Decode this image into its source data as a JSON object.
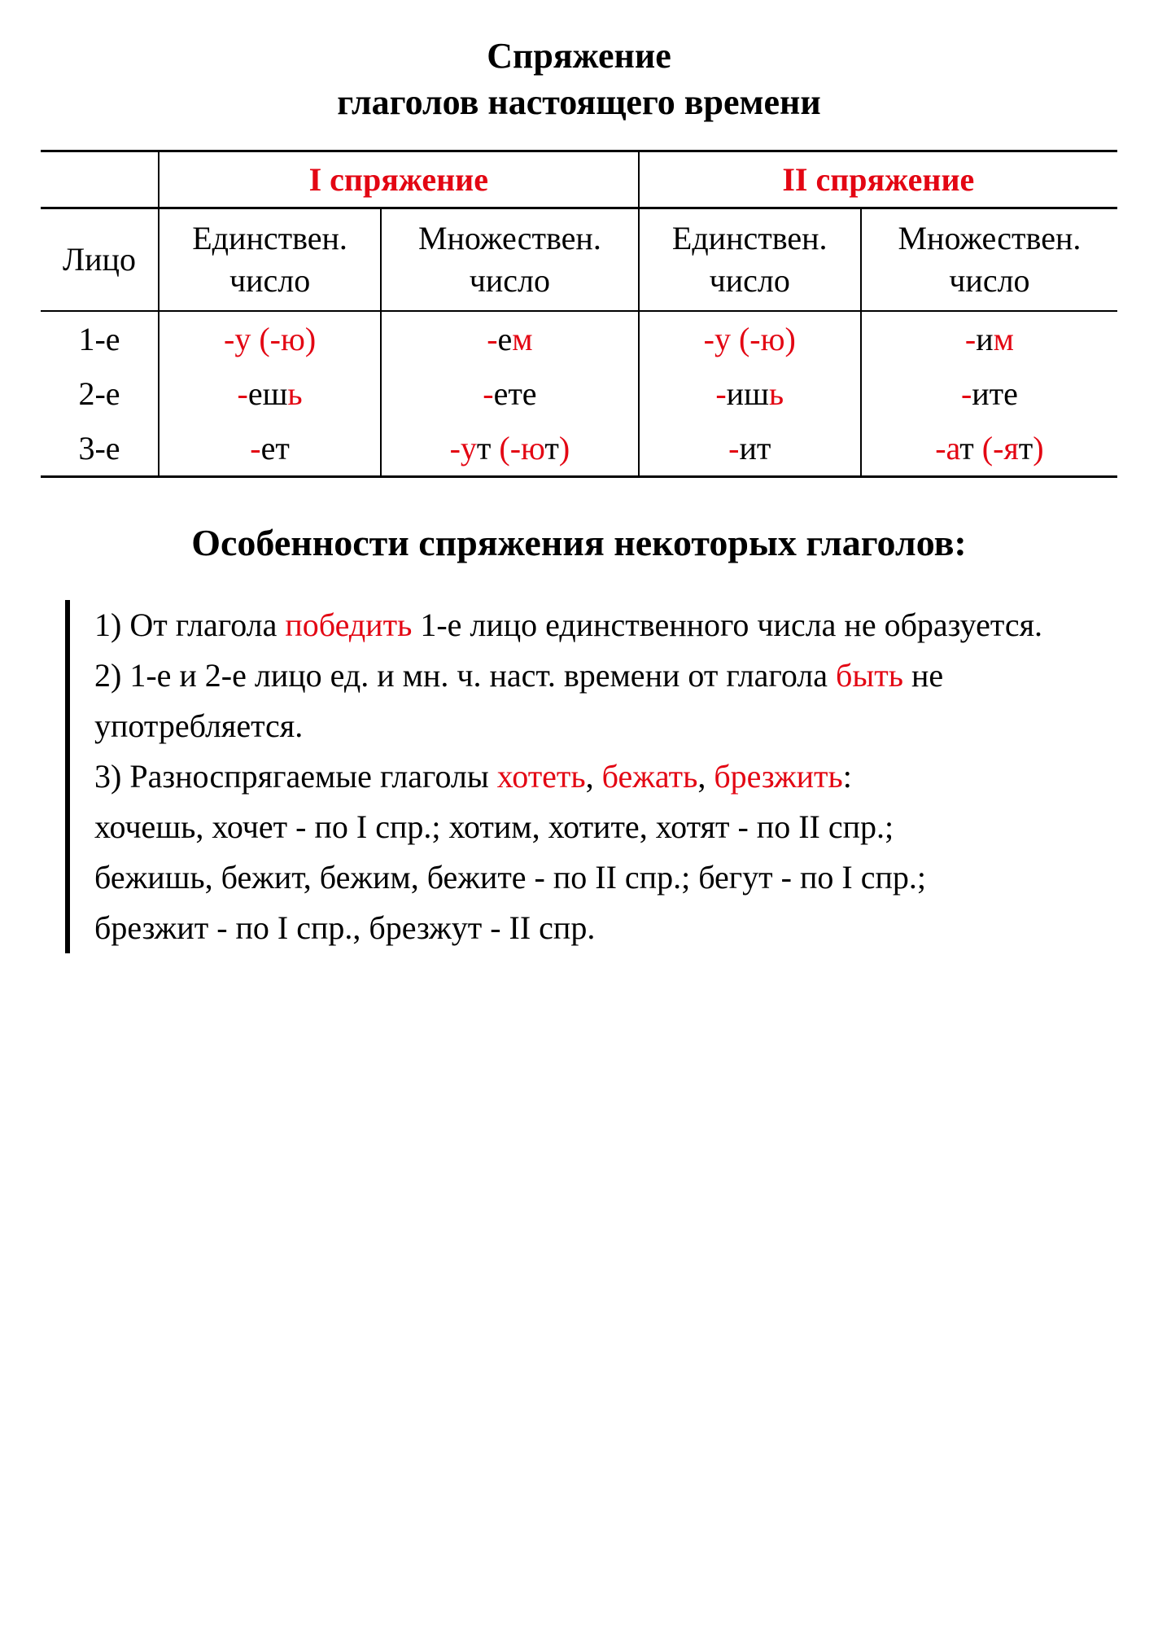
{
  "title_line1": "Спряжение",
  "title_line2": "глаголов настоящего времени",
  "table": {
    "group1": "I спряжение",
    "group2": "II спряжение",
    "person_label": "Лицо",
    "singular_label_1": "Единствен.",
    "singular_label_2": "число",
    "plural_label_1": "Множествен.",
    "plural_label_2": "число",
    "rows": [
      {
        "person": "1-е",
        "c1_sg_pre": "-у (-ю)",
        "c1_pl": "-ем",
        "c2_sg_pre": "-у (-ю)",
        "c2_pl": "-им"
      },
      {
        "person": "2-е",
        "c1_sg": "-ешь",
        "c1_pl": "-ете",
        "c2_sg": "-ишь",
        "c2_pl": "-ите"
      },
      {
        "person": "3-е",
        "c1_sg": "-ет",
        "c1_pl": "-ут (-ют)",
        "c2_sg": "-ит",
        "c2_pl": "-ат (-ят)"
      }
    ]
  },
  "subtitle": "Особенности спряжения некоторых глаголов:",
  "notes": {
    "n1a": "1) От глагола ",
    "n1_hl": "победить",
    "n1b": " 1-е лицо единственного числа не образуется.",
    "n2a": "2) 1-е и 2-е лицо ед. и мн. ч. наст. времени от глагола ",
    "n2_hl": "быть",
    "n2b": " не употребляется.",
    "n3a": "3) Разноспрягаемые глаголы ",
    "n3_hl1": "хотеть",
    "n3_comma1": ", ",
    "n3_hl2": "бежать",
    "n3_comma2": ", ",
    "n3_hl3": "брезжить",
    "n3_colon": ":",
    "n3_line1": "хочешь, хочет - по I спр.; хотим, хотите, хотят - по II спр.;",
    "n3_line2": "бежишь, бежит, бежим, бежите - по II спр.; бегут - по I спр.;",
    "n3_line3": "брезжит - по I спр., брезжут - II спр."
  },
  "colors": {
    "accent": "#e30613",
    "text": "#000000",
    "background": "#ffffff"
  }
}
